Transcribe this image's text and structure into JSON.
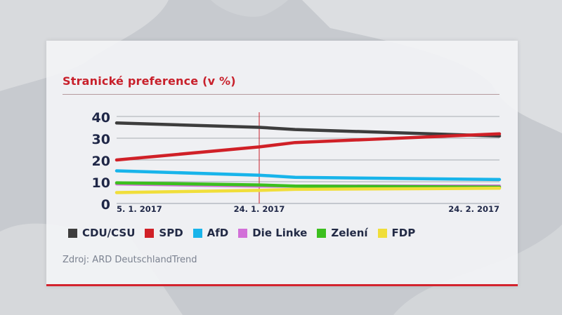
{
  "chart_data": {
    "type": "line",
    "title": "Stranické preference (v %)",
    "xlabel": "",
    "ylabel": "",
    "x_ticks": [
      "5. 1. 2017",
      "24. 1. 2017",
      "24. 2. 2017"
    ],
    "x": [
      "5. 1. 2017",
      "24. 1. 2017",
      "3. 2. 2017",
      "24. 2. 2017"
    ],
    "ylim": [
      0,
      40
    ],
    "y_ticks": [
      "40",
      "30",
      "20",
      "10",
      "0"
    ],
    "marker_date": "24. 1. 2017",
    "series": [
      {
        "name": "CDU/CSU",
        "color": "#3d3d3d",
        "values": [
          37,
          35,
          34,
          31
        ]
      },
      {
        "name": "SPD",
        "color": "#d02027",
        "values": [
          20,
          26,
          28,
          32
        ]
      },
      {
        "name": "AfD",
        "color": "#18b4ea",
        "values": [
          15,
          13,
          12,
          11
        ]
      },
      {
        "name": "Die Linke",
        "color": "#d270d8",
        "values": [
          9,
          8,
          8,
          8
        ]
      },
      {
        "name": "Zelení",
        "color": "#3cbf1e",
        "values": [
          9.5,
          8.5,
          8,
          7.5
        ]
      },
      {
        "name": "FDP",
        "color": "#f0de3a",
        "values": [
          5,
          6,
          6.5,
          7
        ]
      }
    ],
    "legend_position": "bottom"
  },
  "source": "Zdroj: ARD DeutschlandTrend"
}
